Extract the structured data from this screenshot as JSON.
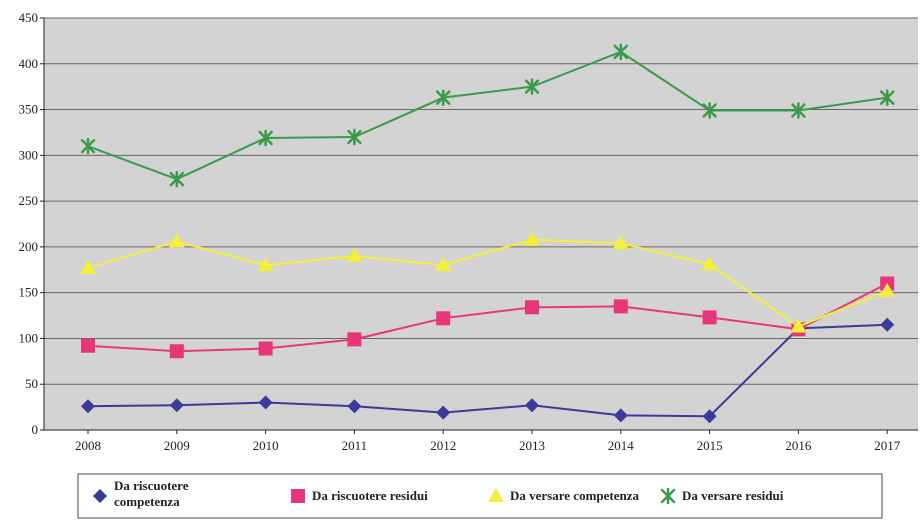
{
  "chart_data": {
    "type": "line",
    "categories": [
      "2008",
      "2009",
      "2010",
      "2011",
      "2012",
      "2013",
      "2014",
      "2015",
      "2016",
      "2017"
    ],
    "ylim": [
      0,
      450
    ],
    "yticks": [
      "0",
      "50",
      "100",
      "150",
      "200",
      "250",
      "300",
      "350",
      "400",
      "450"
    ],
    "grid": true,
    "legend_position": "bottom",
    "title": "",
    "xlabel": "",
    "ylabel": "",
    "series": [
      {
        "name": "Da riscuotere competenza",
        "name_lines": [
          "Da riscuotere",
          "competenza"
        ],
        "color": "#3a3a9a",
        "marker": "diamond",
        "values": [
          26,
          27,
          30,
          26,
          19,
          27,
          16,
          15,
          111,
          115
        ]
      },
      {
        "name": "Da riscuotere residui",
        "name_lines": [
          "Da riscuotere residui"
        ],
        "color": "#e8357a",
        "marker": "square",
        "values": [
          92,
          86,
          89,
          99,
          122,
          134,
          135,
          123,
          110,
          160
        ]
      },
      {
        "name": "Da versare competenza",
        "name_lines": [
          "Da versare competenza"
        ],
        "color": "#f3ef3a",
        "marker": "triangle",
        "values": [
          177,
          206,
          180,
          190,
          180,
          208,
          204,
          181,
          113,
          152
        ]
      },
      {
        "name": "Da versare residui",
        "name_lines": [
          "Da versare residui"
        ],
        "color": "#3a9a4a",
        "marker": "star",
        "values": [
          310,
          274,
          319,
          320,
          363,
          375,
          413,
          349,
          349,
          363
        ]
      }
    ]
  }
}
